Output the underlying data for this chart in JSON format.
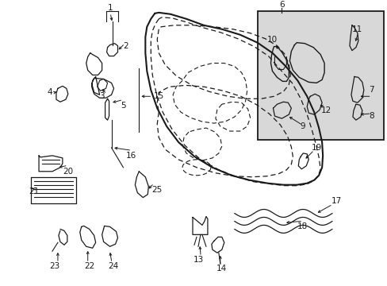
{
  "bg_color": "#ffffff",
  "line_color": "#1a1a1a",
  "inset_bg": "#d8d8d8",
  "fig_width": 4.89,
  "fig_height": 3.6,
  "dpi": 100
}
